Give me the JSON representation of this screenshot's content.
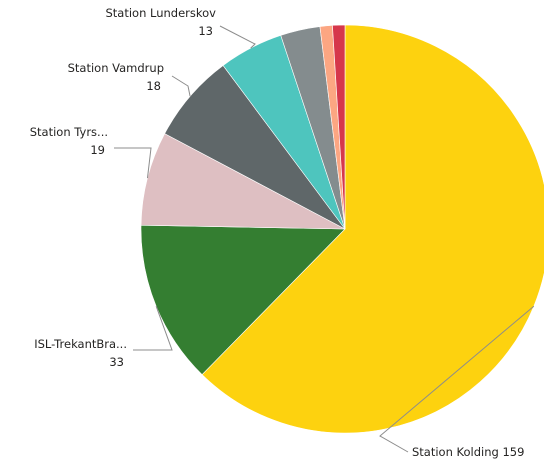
{
  "chart_data": {
    "type": "pie",
    "title": "",
    "series": [
      {
        "name": "",
        "slices": [
          {
            "label": "Station Kolding",
            "value": 159,
            "color": "#FDD20F"
          },
          {
            "label": "ISL-TrekantBra...",
            "value": 33,
            "color": "#347E31"
          },
          {
            "label": "Station Tyrs...",
            "value": 19,
            "color": "#DEBFC2"
          },
          {
            "label": "Station Vamdrup",
            "value": 18,
            "color": "#5F6769"
          },
          {
            "label": "Station Lunderskov",
            "value": 13,
            "color": "#4EC5BE"
          },
          {
            "label": "",
            "value": 8,
            "color": "#848C8E"
          },
          {
            "label": "",
            "value": 2.5,
            "color": "#FCA682"
          },
          {
            "label": "",
            "value": 2.5,
            "color": "#D6374B"
          }
        ]
      }
    ],
    "legend": "none",
    "data_labels": "outside"
  }
}
